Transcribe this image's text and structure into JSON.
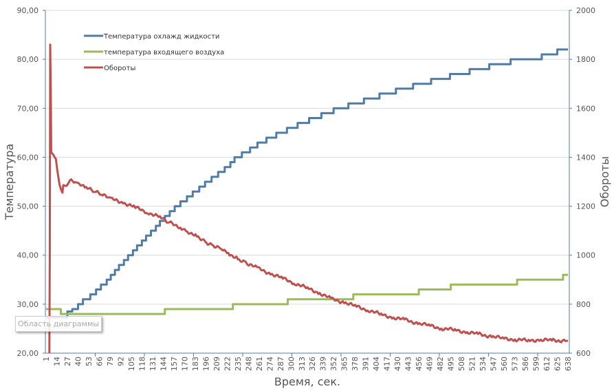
{
  "chart_data": {
    "type": "line",
    "title": "",
    "xlabel": "Время, сек.",
    "ylabel_left": "Температура",
    "ylabel_right": "Обороты",
    "xlim": [
      1,
      638
    ],
    "ylim_left": [
      20,
      90
    ],
    "ylim_right": [
      600,
      2000
    ],
    "x_tick_labels": [
      "1",
      "14",
      "27",
      "40",
      "53",
      "66",
      "79",
      "92",
      "105",
      "118",
      "131",
      "144",
      "157",
      "170",
      "183",
      "196",
      "209",
      "222",
      "235",
      "248",
      "261",
      "274",
      "287",
      "300",
      "313",
      "326",
      "339",
      "352",
      "365",
      "378",
      "391",
      "404",
      "417",
      "430",
      "443",
      "456",
      "469",
      "482",
      "495",
      "508",
      "521",
      "534",
      "547",
      "560",
      "573",
      "586",
      "599",
      "612",
      "625",
      "638"
    ],
    "y_left_tick_labels": [
      "20,00",
      "30,00",
      "40,00",
      "50,00",
      "60,00",
      "70,00",
      "80,00",
      "90,00"
    ],
    "y_left_ticks": [
      20,
      30,
      40,
      50,
      60,
      70,
      80,
      90
    ],
    "y_right_tick_labels": [
      "600",
      "800",
      "1000",
      "1200",
      "1400",
      "1600",
      "1800",
      "2000"
    ],
    "y_right_ticks": [
      600,
      800,
      1000,
      1200,
      1400,
      1600,
      1800,
      2000
    ],
    "grid": true,
    "legend_position": "top-left",
    "series": [
      {
        "name": "Температура охлажд жидкости",
        "axis": "left",
        "color": "#4f7ba7",
        "step": true,
        "points": [
          [
            1,
            27.3
          ],
          [
            27,
            28.5
          ],
          [
            33,
            29
          ],
          [
            40,
            30
          ],
          [
            46,
            31
          ],
          [
            55,
            32
          ],
          [
            62,
            33
          ],
          [
            68,
            34
          ],
          [
            75,
            35
          ],
          [
            80,
            36
          ],
          [
            85,
            37
          ],
          [
            90,
            38
          ],
          [
            96,
            39
          ],
          [
            101,
            40
          ],
          [
            107,
            41
          ],
          [
            112,
            42
          ],
          [
            118,
            43
          ],
          [
            123,
            44
          ],
          [
            129,
            45
          ],
          [
            135,
            46
          ],
          [
            140,
            47
          ],
          [
            146,
            48
          ],
          [
            152,
            49
          ],
          [
            158,
            50
          ],
          [
            165,
            51
          ],
          [
            173,
            52
          ],
          [
            180,
            53
          ],
          [
            188,
            54
          ],
          [
            195,
            55
          ],
          [
            203,
            56
          ],
          [
            211,
            57
          ],
          [
            219,
            58
          ],
          [
            226,
            59
          ],
          [
            231,
            60
          ],
          [
            240,
            61
          ],
          [
            250,
            62
          ],
          [
            259,
            63
          ],
          [
            270,
            64
          ],
          [
            282,
            65
          ],
          [
            295,
            66
          ],
          [
            308,
            67
          ],
          [
            322,
            68
          ],
          [
            337,
            69
          ],
          [
            352,
            70
          ],
          [
            370,
            71
          ],
          [
            389,
            72
          ],
          [
            408,
            73
          ],
          [
            428,
            74
          ],
          [
            449,
            75
          ],
          [
            471,
            76
          ],
          [
            494,
            77
          ],
          [
            518,
            78
          ],
          [
            542,
            79
          ],
          [
            568,
            80
          ],
          [
            606,
            81
          ],
          [
            625,
            82
          ],
          [
            638,
            82
          ]
        ]
      },
      {
        "name": "температура входящего воздуха",
        "axis": "left",
        "color": "#9bbb59",
        "step": true,
        "points": [
          [
            1,
            29
          ],
          [
            19,
            28
          ],
          [
            146,
            29
          ],
          [
            229,
            30
          ],
          [
            296,
            31
          ],
          [
            376,
            32
          ],
          [
            456,
            33
          ],
          [
            495,
            34
          ],
          [
            576,
            35
          ],
          [
            632,
            36
          ],
          [
            638,
            36
          ]
        ]
      },
      {
        "name": "Обороты",
        "axis": "right",
        "color": "#c0504d",
        "step": false,
        "points": [
          [
            5,
            600
          ],
          [
            5.5,
            1000
          ],
          [
            6,
            1860
          ],
          [
            6.8,
            1650
          ],
          [
            7.3,
            1420
          ],
          [
            10,
            1410
          ],
          [
            13,
            1390
          ],
          [
            16,
            1320
          ],
          [
            19,
            1270
          ],
          [
            21,
            1250
          ],
          [
            22,
            1280
          ],
          [
            26,
            1290
          ],
          [
            30,
            1305
          ],
          [
            40,
            1290
          ],
          [
            50,
            1275
          ],
          [
            60,
            1260
          ],
          [
            70,
            1245
          ],
          [
            80,
            1230
          ],
          [
            95,
            1215
          ],
          [
            110,
            1195
          ],
          [
            125,
            1175
          ],
          [
            140,
            1155
          ],
          [
            150,
            1135
          ],
          [
            165,
            1115
          ],
          [
            175,
            1095
          ],
          [
            185,
            1080
          ],
          [
            195,
            1055
          ],
          [
            205,
            1040
          ],
          [
            215,
            1030
          ],
          [
            225,
            1005
          ],
          [
            235,
            985
          ],
          [
            245,
            970
          ],
          [
            260,
            945
          ],
          [
            275,
            925
          ],
          [
            290,
            905
          ],
          [
            305,
            885
          ],
          [
            320,
            865
          ],
          [
            335,
            845
          ],
          [
            350,
            820
          ],
          [
            365,
            808
          ],
          [
            380,
            790
          ],
          [
            395,
            775
          ],
          [
            410,
            758
          ],
          [
            425,
            745
          ],
          [
            440,
            735
          ],
          [
            455,
            722
          ],
          [
            470,
            712
          ],
          [
            485,
            700
          ],
          [
            500,
            695
          ],
          [
            515,
            685
          ],
          [
            530,
            677
          ],
          [
            545,
            668
          ],
          [
            560,
            660
          ],
          [
            575,
            655
          ],
          [
            590,
            652
          ],
          [
            605,
            654
          ],
          [
            620,
            652
          ],
          [
            638,
            650
          ]
        ]
      }
    ]
  },
  "tooltip": "Область диаграммы"
}
